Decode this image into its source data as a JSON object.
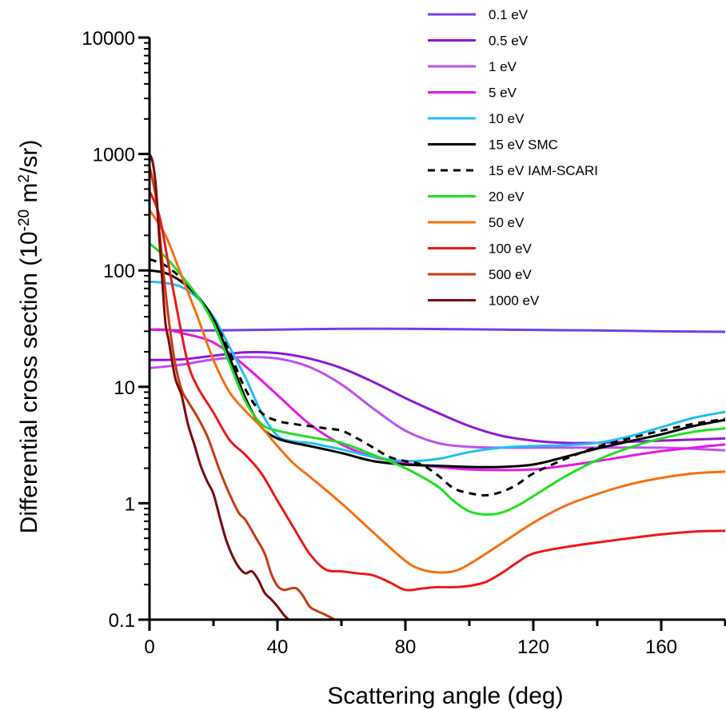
{
  "chart_data": {
    "type": "line",
    "xlabel": "Scattering angle (deg)",
    "ylabel": {
      "prefix": "Differential cross section (10",
      "exp1": "-20",
      "mid": " m",
      "exp2": "2",
      "suffix": "/sr)"
    },
    "xlim": [
      0,
      180
    ],
    "ylim": [
      0.1,
      10000
    ],
    "yscale": "log",
    "xticks": [
      0,
      40,
      80,
      120,
      160
    ],
    "xtick_labels": [
      "0",
      "40",
      "80",
      "120",
      "160"
    ],
    "yticks": [
      0.1,
      1,
      10,
      100,
      1000,
      10000
    ],
    "ytick_labels": [
      "0.1",
      "1",
      "10",
      "100",
      "1000",
      "10000"
    ],
    "grid": false,
    "legend_position": "top-right",
    "series": [
      {
        "name": "0.1 eV",
        "color": "#7040e8",
        "dash": false,
        "x": [
          0,
          10,
          20,
          40,
          60,
          80,
          100,
          120,
          140,
          160,
          180
        ],
        "y": [
          31,
          30.5,
          30.5,
          31,
          31.5,
          31.5,
          31.2,
          30.8,
          30.5,
          30,
          29.7
        ]
      },
      {
        "name": "0.5 eV",
        "color": "#9018d8",
        "dash": false,
        "x": [
          0,
          10,
          20,
          30,
          40,
          50,
          60,
          70,
          80,
          90,
          100,
          110,
          120,
          130,
          140,
          160,
          180
        ],
        "y": [
          17,
          17.2,
          18.5,
          19.8,
          19.5,
          17.5,
          14.5,
          11,
          8,
          6,
          4.6,
          3.8,
          3.45,
          3.3,
          3.3,
          3.45,
          3.6
        ]
      },
      {
        "name": "1 eV",
        "color": "#c050f0",
        "dash": false,
        "x": [
          0,
          10,
          20,
          30,
          40,
          50,
          60,
          70,
          80,
          90,
          100,
          110,
          120,
          140,
          160,
          180
        ],
        "y": [
          14.5,
          15.5,
          17.2,
          18,
          17.5,
          14.8,
          10.5,
          6.5,
          4.2,
          3.3,
          3.05,
          3,
          3,
          3,
          3.0,
          2.85
        ]
      },
      {
        "name": "5 eV",
        "color": "#e818e8",
        "dash": false,
        "x": [
          0,
          5,
          10,
          20,
          30,
          40,
          50,
          60,
          70,
          80,
          90,
          100,
          110,
          120,
          130,
          140,
          150,
          160,
          170,
          180
        ],
        "y": [
          31,
          31,
          29,
          24,
          15,
          8.5,
          4.8,
          3.2,
          2.5,
          2.2,
          2.05,
          1.95,
          1.93,
          1.95,
          2.1,
          2.3,
          2.55,
          2.8,
          3.0,
          3.2
        ]
      },
      {
        "name": "10 eV",
        "color": "#20c0f0",
        "dash": false,
        "x": [
          0,
          5,
          10,
          15,
          20,
          25,
          30,
          35,
          40,
          45,
          50,
          55,
          60,
          70,
          80,
          90,
          100,
          110,
          120,
          130,
          140,
          150,
          160,
          170,
          180
        ],
        "y": [
          80,
          78,
          72,
          58,
          40,
          22,
          12,
          6,
          3.8,
          3.4,
          3.3,
          3.1,
          2.9,
          2.5,
          2.3,
          2.4,
          2.75,
          3.0,
          3.1,
          3.15,
          3.3,
          3.75,
          4.5,
          5.4,
          6.1
        ]
      },
      {
        "name": "15 eV SMC",
        "color": "#000000",
        "dash": false,
        "x": [
          0,
          5,
          10,
          15,
          20,
          25,
          30,
          35,
          40,
          45,
          50,
          60,
          70,
          80,
          90,
          100,
          110,
          120,
          130,
          140,
          150,
          160,
          170,
          180
        ],
        "y": [
          100,
          95,
          80,
          60,
          38,
          18,
          8,
          4.5,
          3.6,
          3.3,
          3.1,
          2.7,
          2.3,
          2.15,
          2.1,
          2.05,
          2.05,
          2.15,
          2.5,
          2.95,
          3.4,
          3.9,
          4.6,
          5.2
        ]
      },
      {
        "name": "15 eV IAM-SCARI",
        "color": "#000000",
        "dash": true,
        "x": [
          0,
          5,
          10,
          15,
          20,
          25,
          30,
          35,
          40,
          45,
          50,
          55,
          60,
          65,
          70,
          75,
          80,
          85,
          90,
          95,
          100,
          105,
          110,
          115,
          120,
          130,
          140,
          150,
          160,
          170,
          180
        ],
        "y": [
          125,
          110,
          85,
          60,
          38,
          20,
          9.5,
          6,
          5.1,
          4.8,
          4.6,
          4.4,
          4.2,
          3.6,
          3,
          2.5,
          2.3,
          2.15,
          1.75,
          1.35,
          1.22,
          1.17,
          1.25,
          1.45,
          1.8,
          2.4,
          3.05,
          3.6,
          4.2,
          4.8,
          5.3
        ]
      },
      {
        "name": "20 eV",
        "color": "#20e020",
        "dash": false,
        "x": [
          0,
          5,
          10,
          15,
          20,
          25,
          30,
          35,
          40,
          50,
          60,
          70,
          80,
          90,
          95,
          100,
          105,
          110,
          115,
          120,
          130,
          140,
          150,
          160,
          170,
          180
        ],
        "y": [
          170,
          130,
          90,
          60,
          35,
          16,
          7.5,
          4.8,
          4.2,
          3.7,
          3.3,
          2.6,
          2.0,
          1.4,
          1.05,
          0.85,
          0.8,
          0.83,
          0.95,
          1.15,
          1.7,
          2.35,
          3.0,
          3.6,
          4.1,
          4.4
        ]
      },
      {
        "name": "50 eV",
        "color": "#f87010",
        "dash": false,
        "x": [
          0,
          5,
          10,
          15,
          20,
          25,
          30,
          35,
          40,
          45,
          50,
          60,
          70,
          80,
          85,
          90,
          95,
          100,
          110,
          120,
          130,
          140,
          150,
          160,
          170,
          180
        ],
        "y": [
          330,
          200,
          90,
          40,
          17,
          9,
          6.2,
          4.5,
          3.1,
          2.2,
          1.7,
          1.0,
          0.56,
          0.32,
          0.27,
          0.255,
          0.26,
          0.3,
          0.45,
          0.68,
          0.95,
          1.2,
          1.45,
          1.65,
          1.8,
          1.87
        ]
      },
      {
        "name": "100 eV",
        "color": "#f01818",
        "dash": false,
        "x": [
          0,
          3,
          6,
          9,
          12,
          15,
          20,
          25,
          30,
          35,
          40,
          45,
          50,
          55,
          60,
          65,
          70,
          75,
          80,
          85,
          90,
          95,
          100,
          105,
          110,
          115,
          120,
          130,
          140,
          150,
          160,
          170,
          180
        ],
        "y": [
          480,
          300,
          110,
          40,
          16,
          10,
          6,
          3.5,
          2.6,
          1.8,
          1.05,
          0.62,
          0.37,
          0.27,
          0.26,
          0.25,
          0.24,
          0.21,
          0.18,
          0.185,
          0.19,
          0.19,
          0.195,
          0.21,
          0.25,
          0.31,
          0.37,
          0.42,
          0.46,
          0.5,
          0.54,
          0.57,
          0.58
        ]
      },
      {
        "name": "500 eV",
        "color": "#c83c10",
        "dash": false,
        "x": [
          0,
          2,
          4,
          6,
          8,
          10,
          12,
          15,
          18,
          20,
          22,
          25,
          28,
          30,
          33,
          36,
          38,
          40,
          42,
          44,
          46,
          48,
          50,
          52,
          55,
          58
        ],
        "y": [
          780,
          420,
          120,
          38,
          16,
          9.5,
          7.5,
          5.5,
          3.8,
          2.7,
          1.9,
          1.2,
          0.82,
          0.72,
          0.52,
          0.37,
          0.25,
          0.195,
          0.18,
          0.185,
          0.185,
          0.16,
          0.13,
          0.12,
          0.11,
          0.1
        ]
      },
      {
        "name": "1000 eV",
        "color": "#7a0a0a",
        "dash": false,
        "x": [
          0,
          1,
          2,
          3,
          4,
          5,
          6,
          8,
          10,
          12,
          14,
          16,
          18,
          20,
          22,
          24,
          26,
          28,
          30,
          32,
          34,
          36,
          38,
          40,
          42,
          43.5
        ],
        "y": [
          1000,
          850,
          520,
          200,
          80,
          35,
          25,
          12,
          8.5,
          4.8,
          3.2,
          2.1,
          1.55,
          1.2,
          0.75,
          0.48,
          0.35,
          0.28,
          0.25,
          0.26,
          0.22,
          0.17,
          0.15,
          0.13,
          0.11,
          0.1
        ]
      }
    ]
  }
}
